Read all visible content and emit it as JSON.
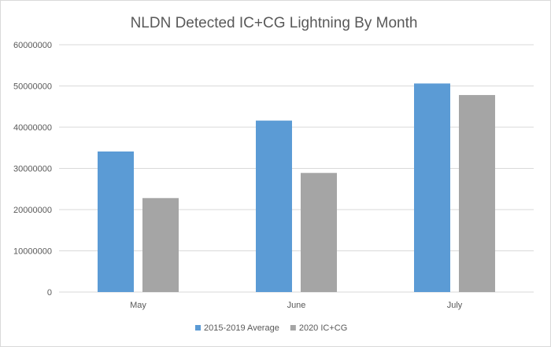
{
  "chart_data": {
    "type": "bar",
    "title": "NLDN Detected IC+CG Lightning By Month",
    "xlabel": "",
    "ylabel": "",
    "categories": [
      "May",
      "June",
      "July"
    ],
    "series": [
      {
        "name": "2015-2019 Average",
        "color": "#5b9bd5",
        "values": [
          34100000,
          41600000,
          50600000
        ]
      },
      {
        "name": "2020 IC+CG",
        "color": "#a5a5a5",
        "values": [
          22800000,
          28900000,
          47800000
        ]
      }
    ],
    "ylim": [
      0,
      60000000
    ],
    "yticks": [
      "0",
      "10000000",
      "20000000",
      "30000000",
      "40000000",
      "50000000",
      "60000000"
    ],
    "grid": true,
    "legend": "bottom"
  }
}
